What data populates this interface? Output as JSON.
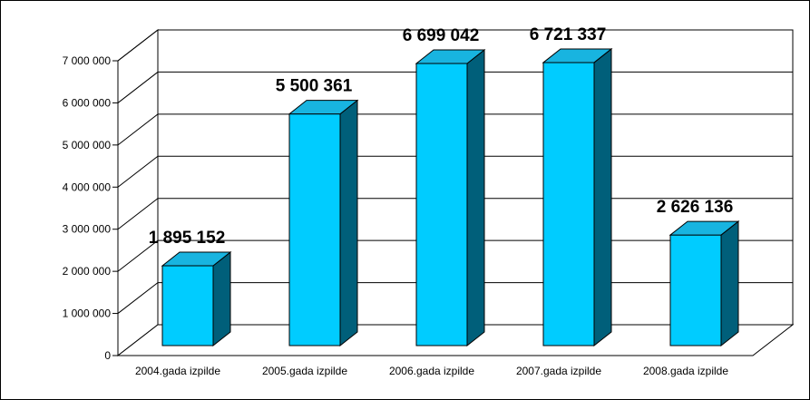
{
  "chart_data": {
    "type": "bar",
    "title": "",
    "xlabel": "",
    "ylabel": "",
    "categories": [
      "2004.gada izpilde",
      "2005.gada izpilde",
      "2006.gada izpilde",
      "2007.gada izpilde",
      "2008.gada izpilde"
    ],
    "values": [
      1895152,
      5500361,
      6699042,
      6721337,
      2626136
    ],
    "value_labels": [
      "1 895 152",
      "5 500 361",
      "6 699 042",
      "6 721 337",
      "2 626 136"
    ],
    "ylim": [
      0,
      7000000
    ],
    "yticks": [
      0,
      1000000,
      2000000,
      3000000,
      4000000,
      5000000,
      6000000,
      7000000
    ],
    "ytick_labels": [
      "0",
      "1 000 000",
      "2 000 000",
      "3 000 000",
      "4 000 000",
      "5 000 000",
      "6 000 000",
      "7 000 000"
    ],
    "grid": true,
    "legend": "none",
    "style": "3d-column",
    "colors": {
      "bar_front": "#00CCFF",
      "bar_top": "#18B4E0",
      "bar_side": "#005F7A",
      "edge": "#000000",
      "grid": "#000000",
      "background": "#FFFFFF"
    }
  }
}
